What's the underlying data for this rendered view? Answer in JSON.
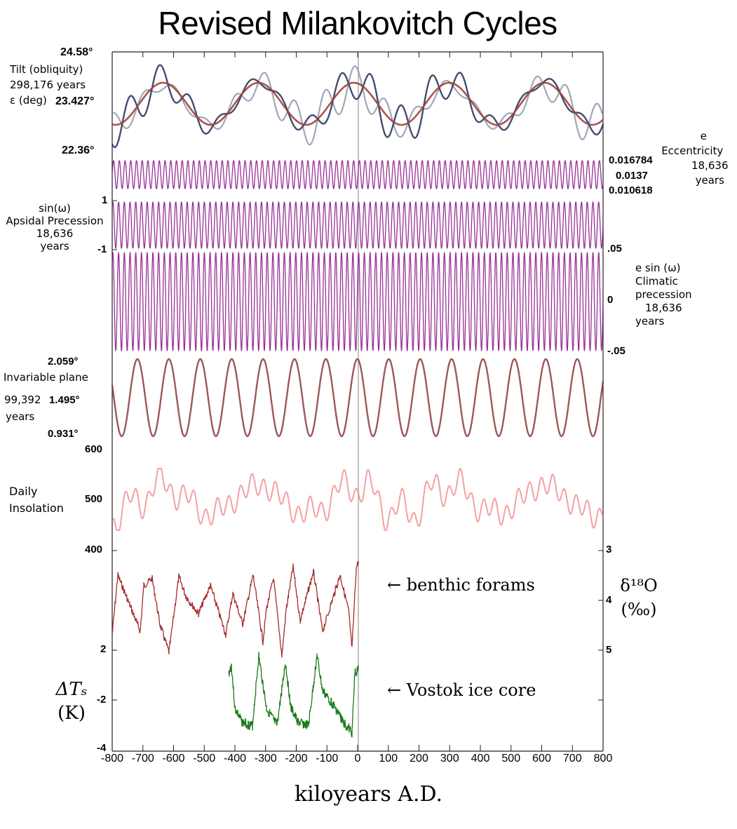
{
  "header": {
    "title": "Revised Milankovitch Cycles"
  },
  "panels": {
    "tilt": {
      "label_lines": [
        "Tilt (obliquity)",
        "298,176 years",
        "ε (deg)"
      ],
      "ticks": [
        "24.58°",
        "23.427°",
        "22.36°"
      ]
    },
    "eccentricity": {
      "label_lines": [
        "e",
        "Eccentricity",
        "18,636",
        "years"
      ],
      "ticks": [
        "0.016784",
        "0.0137",
        "0.010618"
      ]
    },
    "apsidal": {
      "label_lines": [
        "sin(ω)",
        "Apsidal Precession",
        "18,636",
        "years"
      ],
      "ticks": [
        "1",
        "-1"
      ]
    },
    "climatic": {
      "label_lines": [
        "e sin (ω)",
        "Climatic",
        "precession",
        "18,636",
        "years"
      ],
      "ticks": [
        ".05",
        "0",
        "-.05"
      ]
    },
    "invariable": {
      "label_lines": [
        "Invariable plane",
        "99,392",
        "years"
      ],
      "ticks": [
        "2.059°",
        "1.495°",
        "0.931°"
      ]
    },
    "insolation": {
      "label_lines": [
        "Daily",
        "Insolation"
      ],
      "ticks": [
        "600",
        "500",
        "400"
      ]
    },
    "proxies": {
      "left_ticks": [
        "2",
        "-2",
        "-4"
      ],
      "right_ticks": [
        "3",
        "4",
        "5"
      ],
      "left_label": [
        "ΔTₛ",
        "(K)"
      ],
      "right_label": [
        "δ¹⁸O",
        "(‰)"
      ],
      "annotations": [
        "← benthic forams",
        "← Vostok ice core"
      ]
    }
  },
  "xaxis": {
    "ticks": [
      "-800",
      "-700",
      "-600",
      "-500",
      "-400",
      "-300",
      "-200",
      "-100",
      "0",
      "100",
      "200",
      "300",
      "400",
      "500",
      "600",
      "700",
      "800"
    ],
    "label": "kiloyears A.D."
  },
  "chart_data": {
    "type": "line",
    "title": "Revised Milankovitch Cycles",
    "xlabel": "kiloyears A.D.",
    "xlim": [
      -800,
      800
    ],
    "x_ticks": [
      -800,
      -700,
      -600,
      -500,
      -400,
      -300,
      -200,
      -100,
      0,
      100,
      200,
      300,
      400,
      500,
      600,
      700,
      800
    ],
    "colors": {
      "tilt_dark": "#2e3a63",
      "tilt_light": "#8a90a8",
      "tilt_fit": "#a0433c",
      "precession": "#8b1a8b",
      "invariable": "#8b3a3a",
      "insolation": "#f08080",
      "benthic": "#a52a2a",
      "vostok": "#1a7a1a"
    },
    "series": [
      {
        "name": "Tilt (obliquity) ε",
        "unit": "deg",
        "ylim": [
          22.36,
          24.58
        ],
        "mean": 23.427,
        "period_years": 298176,
        "note": "three overlaid curves: dark blue, light blue-grey, and red sinusoidal fit (~6 peaks per 800 ky)"
      },
      {
        "name": "Eccentricity e",
        "ylim": [
          0.010618,
          0.016784
        ],
        "mean": 0.0137,
        "period_years": 18636
      },
      {
        "name": "Apsidal precession sin(ω)",
        "ylim": [
          -1,
          1
        ],
        "period_years": 18636
      },
      {
        "name": "Climatic precession e sin(ω)",
        "ylim": [
          -0.05,
          0.05
        ],
        "period_years": 18636
      },
      {
        "name": "Invariable plane inclination",
        "unit": "deg",
        "ylim": [
          0.931,
          2.059
        ],
        "mean": 1.495,
        "period_years": 99392,
        "note": "~16 cycles over -800..800 ky"
      },
      {
        "name": "Daily insolation",
        "ylim": [
          400,
          600
        ],
        "typical_range": [
          440,
          560
        ]
      },
      {
        "name": "Benthic forams δ18O",
        "unit": "permil",
        "right_axis": [
          3,
          5
        ],
        "x_range": [
          -800,
          0
        ]
      },
      {
        "name": "Vostok ice core ΔTs",
        "unit": "K",
        "left_axis": [
          -4,
          2
        ],
        "x_range": [
          -420,
          0
        ]
      }
    ]
  }
}
